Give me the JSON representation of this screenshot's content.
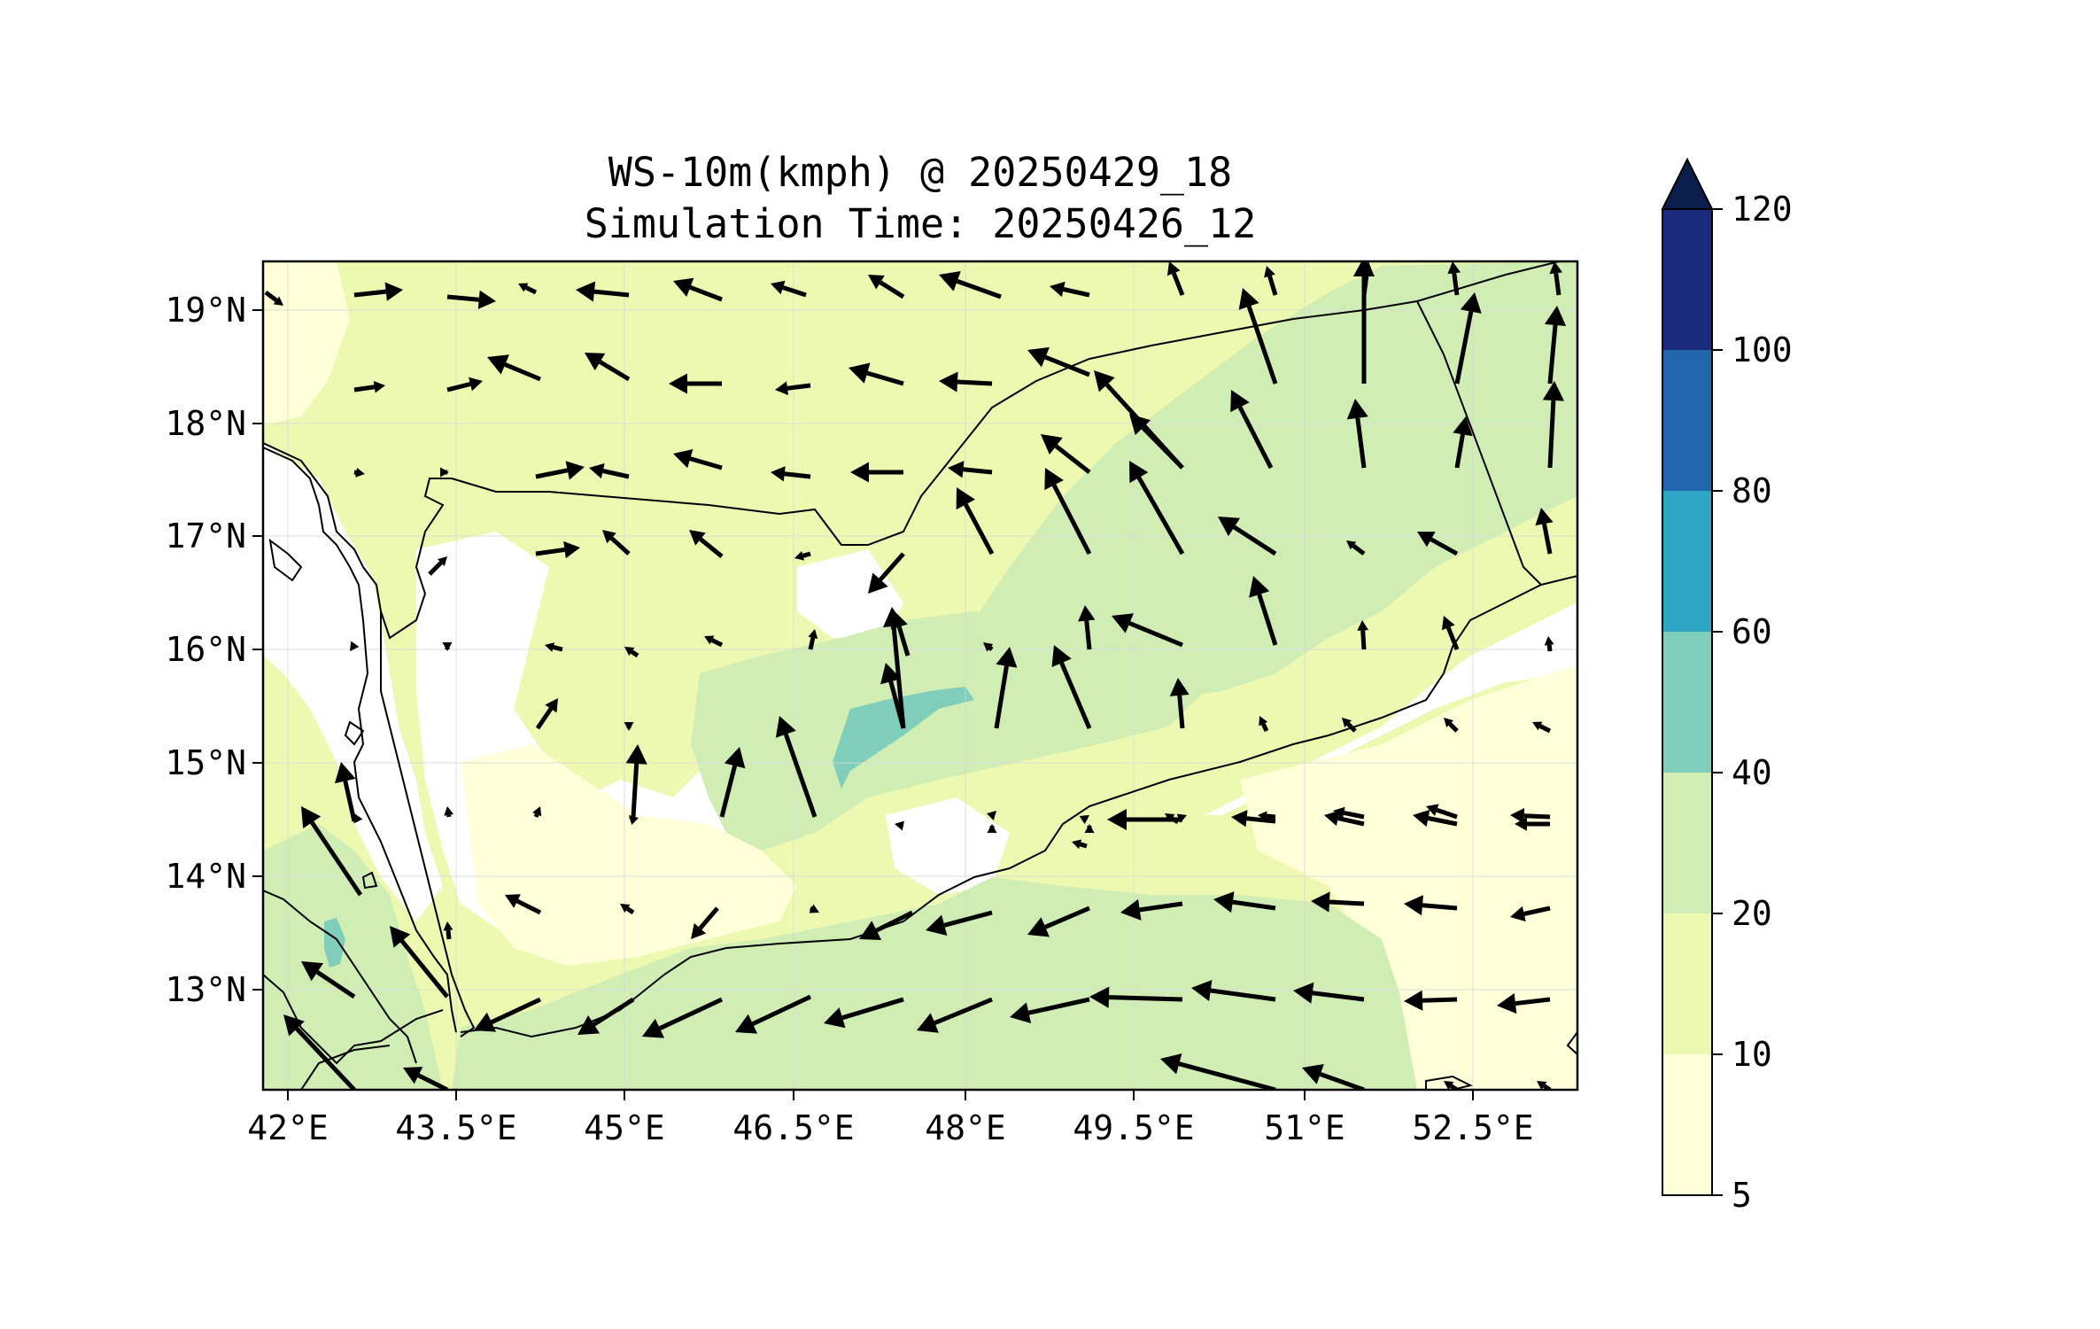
{
  "title": {
    "line1": "WS-10m(kmph) @ 20250429_18",
    "line2": "Simulation Time: 20250426_12"
  },
  "axes": {
    "lon_ticks": [
      "42°E",
      "43.5°E",
      "45°E",
      "46.5°E",
      "48°E",
      "49.5°E",
      "51°E",
      "52.5°E"
    ],
    "lat_ticks": [
      "19°N",
      "18°N",
      "17°N",
      "16°N",
      "15°N",
      "14°N",
      "13°N"
    ]
  },
  "colorbar": {
    "tick_labels": [
      "5",
      "10",
      "20",
      "40",
      "60",
      "80",
      "100",
      "120"
    ],
    "colors": [
      "#ffffd9",
      "#edf8b1",
      "#d0edb3",
      "#7fcdbb",
      "#2fa5c6",
      "#2165ac",
      "#1a2b7d"
    ],
    "extend_color": "#0b1f4d"
  },
  "colors": {
    "frame": "#000000",
    "coast": "#000000",
    "arrow": "#000000",
    "land_low": "#ffffff",
    "fill_5_10": "#ffffd9",
    "fill_10_20": "#edf8b1",
    "fill_20_40": "#d0edb3",
    "fill_40_60": "#7fcdbb"
  }
}
